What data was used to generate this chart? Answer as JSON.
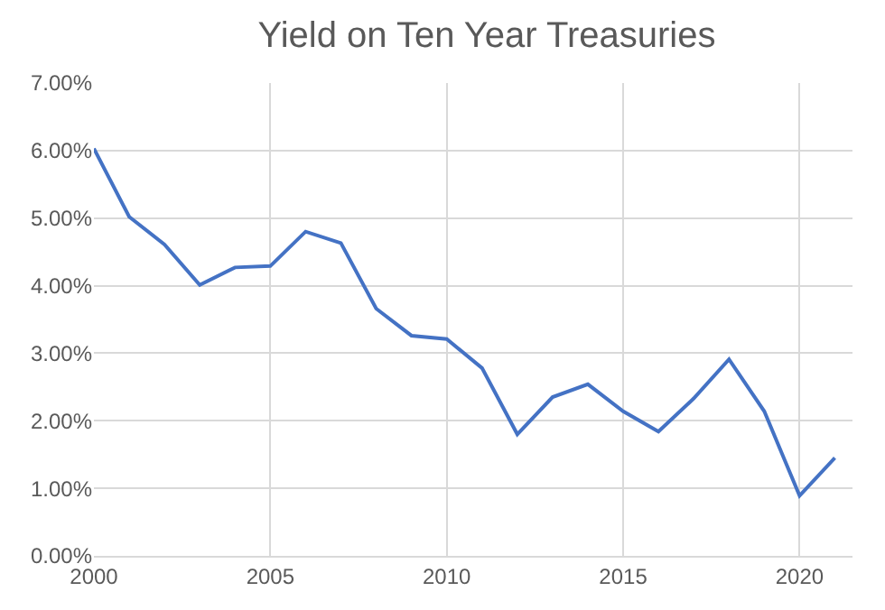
{
  "chart_data": {
    "type": "line",
    "title": "Yield on Ten Year Treasuries",
    "x": [
      2000,
      2001,
      2002,
      2003,
      2004,
      2005,
      2006,
      2007,
      2008,
      2009,
      2010,
      2011,
      2012,
      2013,
      2014,
      2015,
      2016,
      2017,
      2018,
      2019,
      2020,
      2021
    ],
    "series": [
      {
        "color": "#4472c4",
        "values": [
          6.03,
          5.02,
          4.61,
          4.01,
          4.27,
          4.29,
          4.8,
          4.63,
          3.66,
          3.26,
          3.21,
          2.78,
          1.8,
          2.35,
          2.54,
          2.14,
          1.84,
          2.33,
          2.91,
          2.14,
          0.89,
          1.45
        ]
      }
    ],
    "xlim": [
      2000,
      2021.5
    ],
    "xticks": [
      2000,
      2005,
      2010,
      2015,
      2020
    ],
    "ylim": [
      0,
      7
    ],
    "yticks": [
      {
        "value": 0,
        "label": "0.00%"
      },
      {
        "value": 1,
        "label": "1.00%"
      },
      {
        "value": 2,
        "label": "2.00%"
      },
      {
        "value": 3,
        "label": "3.00%"
      },
      {
        "value": 4,
        "label": "4.00%"
      },
      {
        "value": 5,
        "label": "5.00%"
      },
      {
        "value": 6,
        "label": "6.00%"
      },
      {
        "value": 7,
        "label": "7.00%"
      }
    ],
    "grid": true,
    "legend": false,
    "marker": "none",
    "line_style": "solid"
  }
}
